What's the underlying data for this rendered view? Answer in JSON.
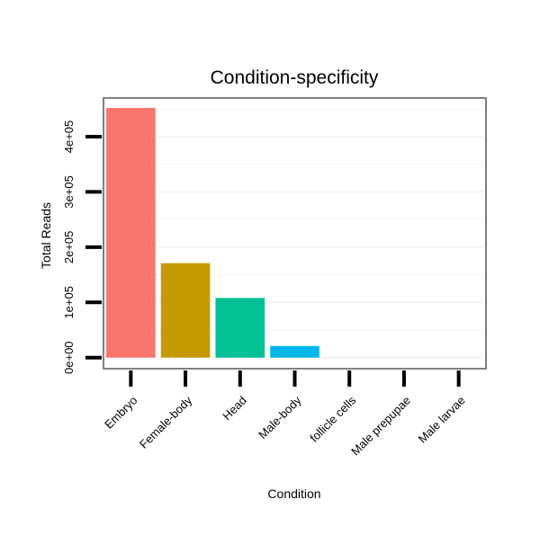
{
  "chart_data": {
    "type": "bar",
    "title": "Condition-specificity",
    "xlabel": "Condition",
    "ylabel": "Total Reads",
    "categories": [
      "Embryo",
      "Female-body",
      "Head",
      "Male-body",
      "follicle cells",
      "Male prepupae",
      "Male larvae"
    ],
    "values": [
      452000,
      171000,
      108000,
      21000,
      0,
      0,
      0
    ],
    "colors": [
      "#F8766D",
      "#C49A00",
      "#00C094",
      "#00B6EB",
      "#C77CFF",
      "#A58AFF",
      "#FB61D7"
    ],
    "ylim": [
      -20000,
      470000
    ],
    "y_ticks": [
      0,
      100000,
      200000,
      300000,
      400000
    ],
    "y_tick_labels": [
      "0e+00",
      "1e+05",
      "2e+05",
      "3e+05",
      "4e+05"
    ],
    "grid": true,
    "legend": "none"
  }
}
